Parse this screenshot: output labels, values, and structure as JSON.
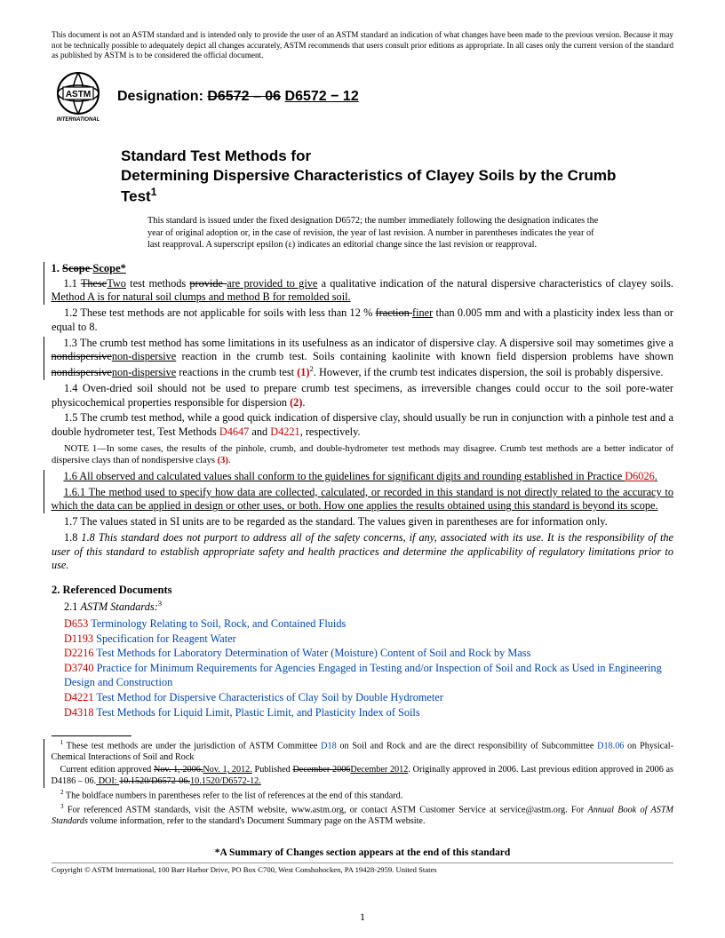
{
  "disclaimer": "This document is not an ASTM standard and is intended only to provide the user of an ASTM standard an indication of what changes have been made to the previous version. Because it may not be technically possible to adequately depict all changes accurately, ASTM recommends that users consult prior editions as appropriate. In all cases only the current version of the standard as published by ASTM is to be considered the official document.",
  "designation_label": "Designation: ",
  "designation_old": "D6572 – 06",
  "designation_new": "D6572 − 12",
  "title_l1": "Standard Test Methods for",
  "title_l2": "Determining Dispersive Characteristics of Clayey Soils by the Crumb Test",
  "title_sup": "1",
  "issuance": "This standard is issued under the fixed designation D6572; the number immediately following the designation indicates the year of original adoption or, in the case of revision, the year of last revision. A number in parentheses indicates the year of last reapproval. A superscript epsilon (ε) indicates an editorial change since the last revision or reapproval.",
  "sec1_head_num": "1. ",
  "sec1_head_old": "Scope ",
  "sec1_head_new": "Scope*",
  "p11a": "1.1 ",
  "p11_old1": "These",
  "p11_new1": "Two",
  "p11_mid1": " test methods ",
  "p11_old2": "provide ",
  "p11_new2": "are provided to give",
  "p11_mid2": " a qualitative indication of the natural dispersive characteristics of clayey soils.",
  "p11_new3": " Method A is for natural soil clumps and method B for remolded soil.",
  "p12a": "1.2 These test methods are not applicable for soils with less than 12 % ",
  "p12_old": "fraction ",
  "p12_new": "finer",
  "p12b": " than 0.005 mm and with a plasticity index less than or equal to 8.",
  "p13a": "1.3 The crumb test method has some limitations in its usefulness as an indicator of dispersive clay. A dispersive soil may sometimes give a ",
  "p13_old1": "nondispersive",
  "p13_new1": "non-dispersive",
  "p13b": " reaction in the crumb test. Soils containing kaolinite with known field dispersion problems have shown ",
  "p13_old2": "nondispersive",
  "p13_new2": "non-dispersive",
  "p13c": " reactions in the crumb test ",
  "p13_ref": "(1)",
  "p13_sup": "2",
  "p13d": ". However, if the crumb test indicates dispersion, the soil is probably dispersive.",
  "p14a": "1.4 Oven-dried soil should not be used to prepare crumb test specimens, as irreversible changes could occur to the soil pore-water physicochemical properties responsible for dispersion ",
  "p14_ref": "(2)",
  "p14b": ".",
  "p15a": "1.5 The crumb test method, while a good quick indication of dispersive clay, should usually be run in conjunction with a pinhole test and a double hydrometer test, Test Methods ",
  "p15_r1": "D4647",
  "p15_mid": " and ",
  "p15_r2": "D4221",
  "p15b": ", respectively.",
  "note1a": "NOTE 1—In some cases, the results of the pinhole, crumb, and double-hydrometer test methods may disagree. Crumb test methods are a better indicator of dispersive clays than of nondispersive clays ",
  "note1_ref": "(3)",
  "note1b": ".",
  "p16a": "1.6 All observed and calculated values shall conform to the guidelines for significant digits and rounding established in Practice ",
  "p16_ref": "D6026",
  "p16b": ".",
  "p161": "1.6.1 The method used to specify how data are collected, calculated, or recorded in this standard is not directly related to the accuracy to which the data can be applied in design or other uses, or both. How one applies the results obtained using this standard is beyond its scope.",
  "p17": "1.7 The values stated in SI units are to be regarded as the standard. The values given in parentheses are for information only.",
  "p18": "1.8 This standard does not purport to address all of the safety concerns, if any, associated with its use. It is the responsibility of the user of this standard to establish appropriate safety and health practices and determine the applicability of regulatory limitations prior to use.",
  "sec2_head": "2. Referenced Documents",
  "p21a": "2.1 ",
  "p21b": "ASTM Standards:",
  "p21_sup": "3",
  "refs": [
    {
      "code": "D653",
      "title": "Terminology Relating to Soil, Rock, and Contained Fluids"
    },
    {
      "code": "D1193",
      "title": "Specification for Reagent Water"
    },
    {
      "code": "D2216",
      "title": "Test Methods for Laboratory Determination of Water (Moisture) Content of Soil and Rock by Mass"
    },
    {
      "code": "D3740",
      "title": "Practice for Minimum Requirements for Agencies Engaged in Testing and/or Inspection of Soil and Rock as Used in Engineering Design and Construction"
    },
    {
      "code": "D4221",
      "title": "Test Method for Dispersive Characteristics of Clay Soil by Double Hydrometer"
    },
    {
      "code": "D4318",
      "title": "Test Methods for Liquid Limit, Plastic Limit, and Plasticity Index of Soils"
    }
  ],
  "fn1a": " These test methods are under the jurisdiction of ASTM Committee ",
  "fn1_r1": "D18",
  "fn1b": " on Soil and Rock and are the direct responsibility of Subcommittee ",
  "fn1_r2": "D18.06",
  "fn1c": " on Physical-Chemical Interactions of Soil and Rock",
  "fn1d_pre": "Current edition approved ",
  "fn1d_old1": "Nov. 1, 2006.",
  "fn1d_new1": "Nov. 1, 2012.",
  "fn1d_mid1": " Published ",
  "fn1d_old2": "December 2006",
  "fn1d_new2": "December 2012",
  "fn1d_mid2": ". Originally approved in 2006. Last previous edition approved in 2006 as D4186 – 06.",
  "fn1d_doi_lbl": " DOI: ",
  "fn1d_old3": "10.1520/D6572-06.",
  "fn1d_new3": "10.1520/D6572-12.",
  "fn2": " The boldface numbers in parentheses refer to the list of references at the end of this standard.",
  "fn3a": " For referenced ASTM standards, visit the ASTM website, www.astm.org, or contact ASTM Customer Service at service@astm.org. For ",
  "fn3b": "Annual Book of ASTM Standards",
  "fn3c": " volume information, refer to the standard's Document Summary page on the ASTM website.",
  "summary": "*A Summary of Changes section appears at the end of this standard",
  "copyright": "Copyright © ASTM International, 100 Barr Harbor Drive, PO Box C700, West Conshohocken, PA 19428-2959. United States",
  "pagenum": "1"
}
